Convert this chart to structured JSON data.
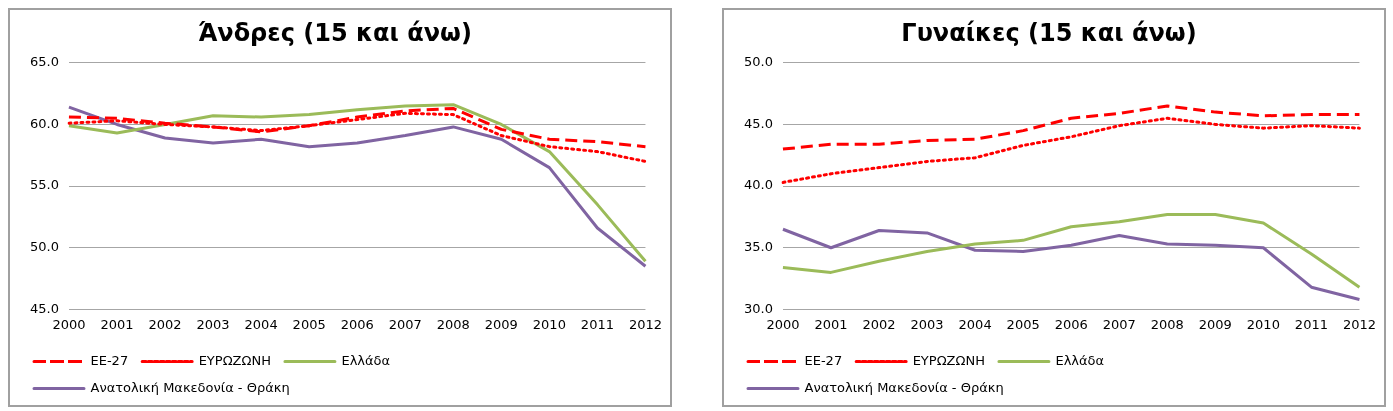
{
  "chart_data": [
    {
      "type": "line",
      "title": "Άνδρες (15 και άνω)",
      "categories": [
        "2000",
        "2001",
        "2002",
        "2003",
        "2004",
        "2005",
        "2006",
        "2007",
        "2008",
        "2009",
        "2010",
        "2011",
        "2012"
      ],
      "series": [
        {
          "name": "ΕΕ-27",
          "color": "#ff0000",
          "line_style": "dashed",
          "values": [
            60.6,
            60.5,
            60.1,
            59.8,
            59.4,
            59.9,
            60.6,
            61.1,
            61.3,
            59.6,
            58.8,
            58.6,
            58.2
          ]
        },
        {
          "name": "ΕΥΡΩΖΩΝΗ",
          "color": "#ff0000",
          "line_style": "dotted",
          "values": [
            60.1,
            60.3,
            60.0,
            59.8,
            59.5,
            59.9,
            60.4,
            60.9,
            60.8,
            59.1,
            58.2,
            57.8,
            57.0
          ]
        },
        {
          "name": "Ελλάδα",
          "color": "#9bbb59",
          "line_style": "solid",
          "values": [
            59.9,
            59.3,
            60.0,
            60.7,
            60.6,
            60.8,
            61.2,
            61.5,
            61.6,
            60.0,
            57.8,
            53.5,
            48.9
          ]
        },
        {
          "name": "Ανατολική Μακεδονία - Θράκη",
          "color": "#8064a2",
          "line_style": "solid",
          "values": [
            61.4,
            60.0,
            58.9,
            58.5,
            58.8,
            58.2,
            58.5,
            59.1,
            59.8,
            58.8,
            56.5,
            51.6,
            48.5
          ]
        }
      ],
      "ylim": [
        45,
        65
      ],
      "yticks": [
        {
          "value": 45,
          "label": "45.0"
        },
        {
          "value": 50,
          "label": "50.0"
        },
        {
          "value": 55,
          "label": "55.0"
        },
        {
          "value": 60,
          "label": "60.0"
        },
        {
          "value": 65,
          "label": "65.0"
        }
      ],
      "grid": "y",
      "legend": "bottom",
      "marker": "none"
    },
    {
      "type": "line",
      "title": "Γυναίκες (15 και άνω)",
      "categories": [
        "2000",
        "2001",
        "2002",
        "2003",
        "2004",
        "2005",
        "2006",
        "2007",
        "2008",
        "2009",
        "2010",
        "2011",
        "2012"
      ],
      "series": [
        {
          "name": "ΕΕ-27",
          "color": "#ff0000",
          "line_style": "dashed",
          "values": [
            43.0,
            43.4,
            43.4,
            43.7,
            43.8,
            44.5,
            45.5,
            45.9,
            46.5,
            46.0,
            45.7,
            45.8,
            45.8
          ]
        },
        {
          "name": "ΕΥΡΩΖΩΝΗ",
          "color": "#ff0000",
          "line_style": "dotted",
          "values": [
            40.3,
            41.0,
            41.5,
            42.0,
            42.3,
            43.3,
            44.0,
            44.9,
            45.5,
            45.0,
            44.7,
            44.9,
            44.7
          ]
        },
        {
          "name": "Ελλάδα",
          "color": "#9bbb59",
          "line_style": "solid",
          "values": [
            33.4,
            33.0,
            33.9,
            34.7,
            35.3,
            35.6,
            36.7,
            37.1,
            37.7,
            37.7,
            37.0,
            34.5,
            31.8
          ]
        },
        {
          "name": "Ανατολική Μακεδονία - Θράκη",
          "color": "#8064a2",
          "line_style": "solid",
          "values": [
            36.5,
            35.0,
            36.4,
            36.2,
            34.8,
            34.7,
            35.2,
            36.0,
            35.3,
            35.2,
            35.0,
            31.8,
            30.8
          ]
        }
      ],
      "ylim": [
        30,
        50
      ],
      "yticks": [
        {
          "value": 30,
          "label": "30.0"
        },
        {
          "value": 35,
          "label": "35.0"
        },
        {
          "value": 40,
          "label": "40.0"
        },
        {
          "value": 45,
          "label": "45.0"
        },
        {
          "value": 50,
          "label": "50.0"
        }
      ],
      "grid": "y",
      "legend": "bottom",
      "marker": "none"
    }
  ]
}
